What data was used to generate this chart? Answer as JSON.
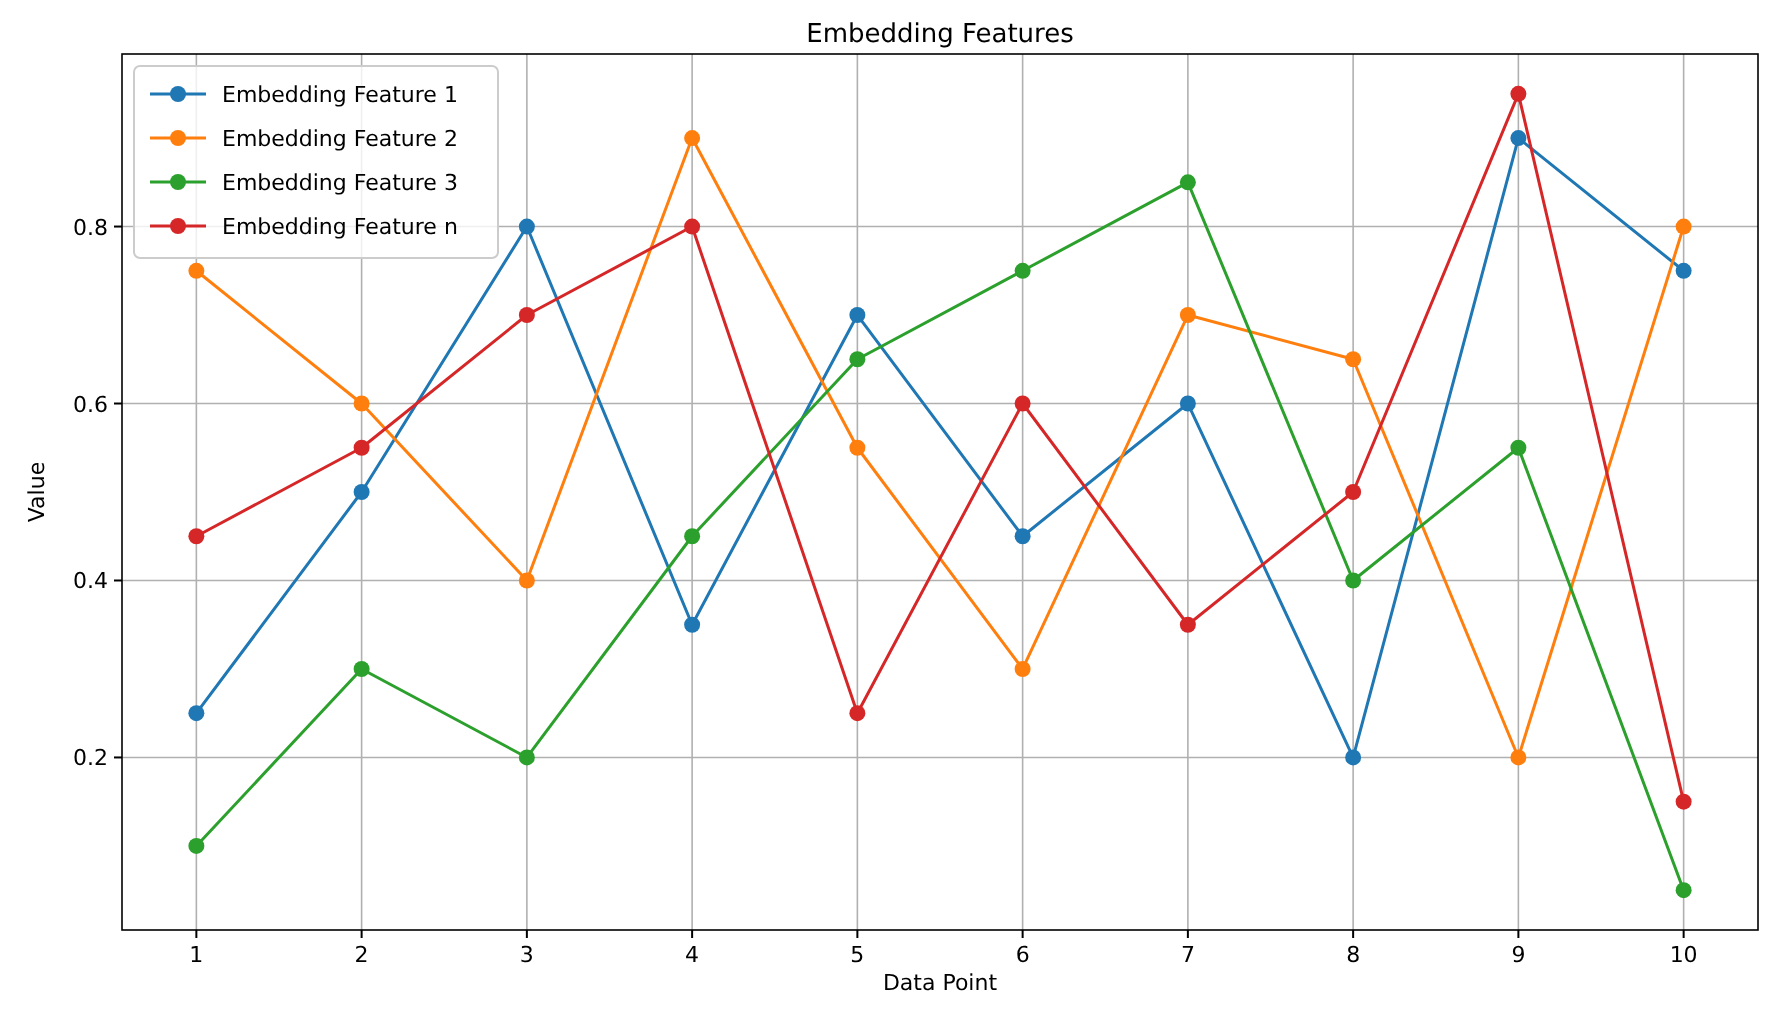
{
  "chart_data": {
    "type": "line",
    "title": "Embedding Features",
    "xlabel": "Data Point",
    "ylabel": "Value",
    "x": [
      1,
      2,
      3,
      4,
      5,
      6,
      7,
      8,
      9,
      10
    ],
    "xlim": [
      0.55,
      10.45
    ],
    "xticks": [
      1,
      2,
      3,
      4,
      5,
      6,
      7,
      8,
      9,
      10
    ],
    "ylim": [
      0.005,
      0.995
    ],
    "yticks": [
      0.2,
      0.4,
      0.6,
      0.8
    ],
    "grid": true,
    "legend": "top left",
    "marker": "circle",
    "line_style": "solid",
    "series": [
      {
        "name": "Embedding Feature 1",
        "color": "#1f77b4",
        "values": [
          0.25,
          0.5,
          0.8,
          0.35,
          0.7,
          0.45,
          0.6,
          0.2,
          0.9,
          0.75
        ]
      },
      {
        "name": "Embedding Feature 2",
        "color": "#ff7f0e",
        "values": [
          0.75,
          0.6,
          0.4,
          0.9,
          0.55,
          0.3,
          0.7,
          0.65,
          0.2,
          0.8
        ]
      },
      {
        "name": "Embedding Feature 3",
        "color": "#2ca02c",
        "values": [
          0.1,
          0.3,
          0.2,
          0.45,
          0.65,
          0.75,
          0.85,
          0.4,
          0.55,
          0.05
        ]
      },
      {
        "name": "Embedding Feature n",
        "color": "#d62728",
        "values": [
          0.45,
          0.55,
          0.7,
          0.8,
          0.25,
          0.6,
          0.35,
          0.5,
          0.95,
          0.15
        ]
      }
    ]
  }
}
